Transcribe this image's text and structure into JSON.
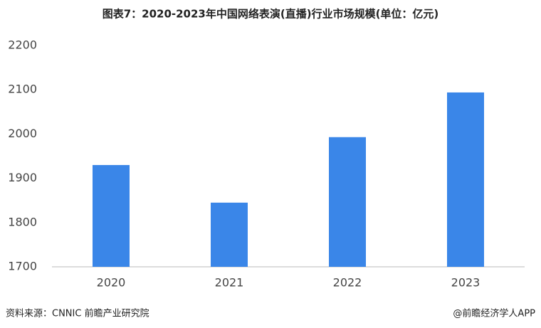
{
  "chart_data": {
    "type": "bar",
    "title": "图表7：2020-2023年中国网络表演(直播)行业市场规模(单位：亿元)",
    "categories": [
      "2020",
      "2021",
      "2022",
      "2023"
    ],
    "values": [
      1930,
      1845,
      1993,
      2094
    ],
    "color": "#3a86e8",
    "ylim": [
      1700,
      2200
    ],
    "yticks": [
      1700,
      1800,
      1900,
      2000,
      2100,
      2200
    ],
    "grid": false,
    "source": "资料来源：CNNIC 前瞻产业研究院",
    "credit": "@前瞻经济学人APP"
  }
}
